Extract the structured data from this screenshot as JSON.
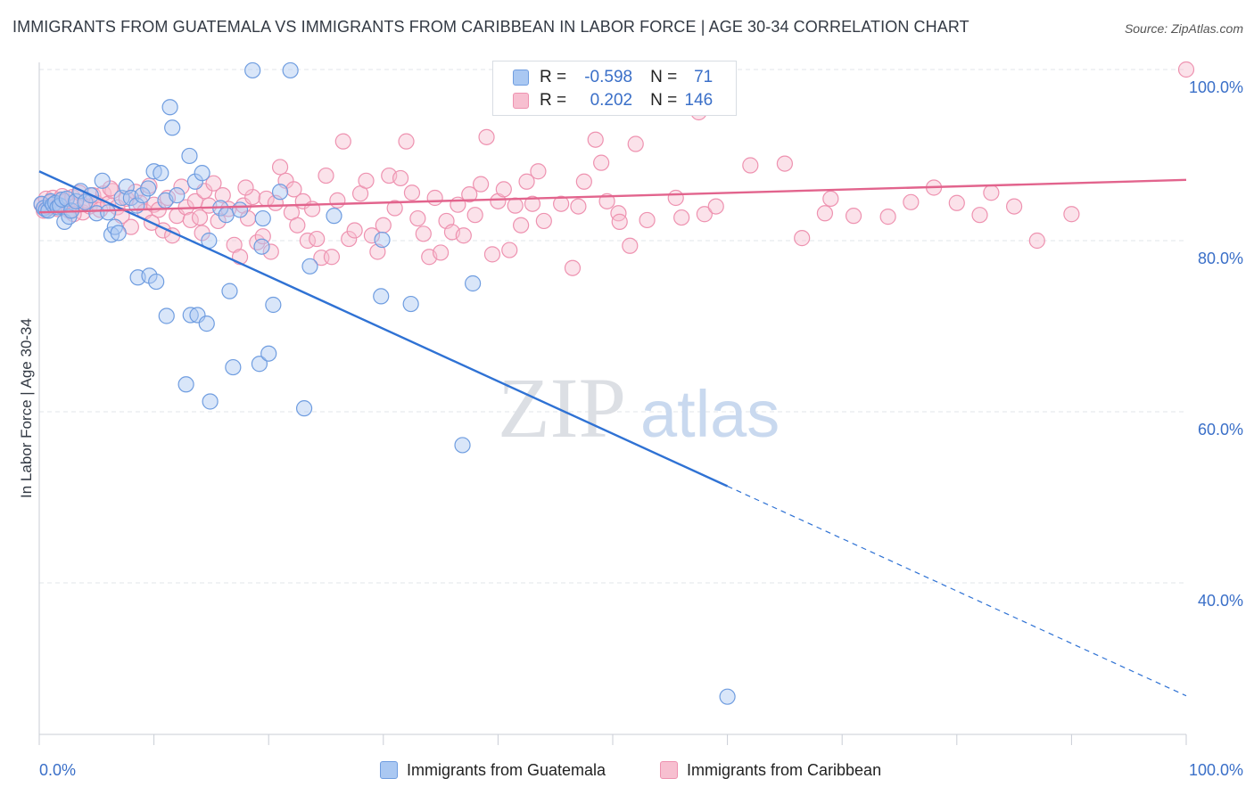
{
  "header": {
    "title": "IMMIGRANTS FROM GUATEMALA VS IMMIGRANTS FROM CARIBBEAN IN LABOR FORCE | AGE 30-34 CORRELATION CHART",
    "source": "Source: ZipAtlas.com"
  },
  "watermark": {
    "zip": "ZIP",
    "atlas": "atlas"
  },
  "legend": {
    "r_label": "R =",
    "n_label": "N =",
    "series": [
      {
        "name": "Immigrants from Guatemala",
        "r": "-0.598",
        "n": "71"
      },
      {
        "name": "Immigrants from Caribbean",
        "r": "0.202",
        "n": "146"
      }
    ]
  },
  "colors": {
    "guatemala_fill": "#aac8f2",
    "guatemala_stroke": "#6f9de0",
    "guatemala_line": "#2f72d4",
    "caribbean_fill": "#f7bfd0",
    "caribbean_stroke": "#ee92b0",
    "caribbean_line": "#e2648d",
    "axis_label": "#3a6fc8",
    "grid": "#e2e5ea"
  },
  "chart_data": {
    "type": "scatter",
    "title": "IMMIGRANTS FROM GUATEMALA VS IMMIGRANTS FROM CARIBBEAN IN LABOR FORCE | AGE 30-34 CORRELATION CHART",
    "xlabel": "",
    "ylabel": "In Labor Force | Age 30-34",
    "xlim": [
      0,
      100
    ],
    "ylim": [
      18,
      102
    ],
    "x_tick_labels": [
      "0.0%",
      "100.0%"
    ],
    "y_ticks": [
      40,
      60,
      80,
      100
    ],
    "y_tick_labels": [
      "40.0%",
      "60.0%",
      "80.0%",
      "100.0%"
    ],
    "grid": true,
    "legend_position": "top-center",
    "series": [
      {
        "name": "Immigrants from Guatemala",
        "r": -0.598,
        "n": 71,
        "trend": {
          "x0": 0,
          "y0": 88.1,
          "x1": 60,
          "y1": 51.3,
          "dashed_to_x": 100,
          "dashed_to_y": 26.8
        },
        "points": [
          [
            0.2,
            84.3
          ],
          [
            0.4,
            83.8
          ],
          [
            0.6,
            83.6
          ],
          [
            0.8,
            83.5
          ],
          [
            1.0,
            84.6
          ],
          [
            1.2,
            84.2
          ],
          [
            1.4,
            84.4
          ],
          [
            1.6,
            83.9
          ],
          [
            1.8,
            84.1
          ],
          [
            2.0,
            84.8
          ],
          [
            2.2,
            82.2
          ],
          [
            2.4,
            84.9
          ],
          [
            2.6,
            82.8
          ],
          [
            2.8,
            83.5
          ],
          [
            3.2,
            84.6
          ],
          [
            3.6,
            85.8
          ],
          [
            4.0,
            84.5
          ],
          [
            4.5,
            85.3
          ],
          [
            5.0,
            83.2
          ],
          [
            5.5,
            87.0
          ],
          [
            6.0,
            83.3
          ],
          [
            6.3,
            80.7
          ],
          [
            6.6,
            81.6
          ],
          [
            6.9,
            80.9
          ],
          [
            7.2,
            85.0
          ],
          [
            7.6,
            86.3
          ],
          [
            8.0,
            85.0
          ],
          [
            8.5,
            84.1
          ],
          [
            8.6,
            75.7
          ],
          [
            9.0,
            85.3
          ],
          [
            9.5,
            86.1
          ],
          [
            9.6,
            75.9
          ],
          [
            10.0,
            88.1
          ],
          [
            10.2,
            75.2
          ],
          [
            10.6,
            87.9
          ],
          [
            11.0,
            84.7
          ],
          [
            11.1,
            71.2
          ],
          [
            11.4,
            95.6
          ],
          [
            11.6,
            93.2
          ],
          [
            12.0,
            85.3
          ],
          [
            12.8,
            63.2
          ],
          [
            13.1,
            89.9
          ],
          [
            13.2,
            71.3
          ],
          [
            13.6,
            86.9
          ],
          [
            13.8,
            71.3
          ],
          [
            14.2,
            87.9
          ],
          [
            14.6,
            70.3
          ],
          [
            14.8,
            80.0
          ],
          [
            14.9,
            61.2
          ],
          [
            15.8,
            83.8
          ],
          [
            16.3,
            83.0
          ],
          [
            16.6,
            74.1
          ],
          [
            16.9,
            65.2
          ],
          [
            17.5,
            83.6
          ],
          [
            18.6,
            99.9
          ],
          [
            19.2,
            65.6
          ],
          [
            19.4,
            79.3
          ],
          [
            19.5,
            82.6
          ],
          [
            20.0,
            66.8
          ],
          [
            20.4,
            72.5
          ],
          [
            21.0,
            85.7
          ],
          [
            21.9,
            99.9
          ],
          [
            23.1,
            60.4
          ],
          [
            23.6,
            77.0
          ],
          [
            25.7,
            82.9
          ],
          [
            29.9,
            80.1
          ],
          [
            29.8,
            73.5
          ],
          [
            32.4,
            72.6
          ],
          [
            37.8,
            75.0
          ],
          [
            36.9,
            56.1
          ],
          [
            60.0,
            26.7
          ]
        ]
      },
      {
        "name": "Immigrants from Caribbean",
        "r": 0.202,
        "n": 146,
        "trend": {
          "x0": 0,
          "y0": 83.3,
          "x1": 100,
          "y1": 87.1
        },
        "points": [
          [
            0.2,
            84.2
          ],
          [
            0.4,
            83.5
          ],
          [
            0.6,
            84.9
          ],
          [
            0.8,
            83.9
          ],
          [
            1.0,
            84.5
          ],
          [
            1.2,
            85.0
          ],
          [
            1.4,
            84.0
          ],
          [
            1.6,
            83.7
          ],
          [
            1.8,
            84.8
          ],
          [
            2.0,
            85.2
          ],
          [
            2.3,
            84.6
          ],
          [
            2.6,
            83.5
          ],
          [
            2.9,
            85.1
          ],
          [
            3.2,
            84.1
          ],
          [
            3.5,
            85.6
          ],
          [
            3.8,
            83.3
          ],
          [
            4.1,
            84.7
          ],
          [
            4.4,
            84.0
          ],
          [
            4.7,
            85.3
          ],
          [
            5.0,
            84.4
          ],
          [
            5.3,
            83.6
          ],
          [
            5.6,
            85.5
          ],
          [
            6.0,
            84.3
          ],
          [
            6.4,
            85.8
          ],
          [
            6.8,
            83.9
          ],
          [
            7.2,
            82.9
          ],
          [
            7.6,
            84.9
          ],
          [
            8.0,
            81.6
          ],
          [
            8.4,
            85.7
          ],
          [
            8.8,
            84.4
          ],
          [
            9.2,
            83.4
          ],
          [
            9.6,
            86.4
          ],
          [
            10.0,
            84.2
          ],
          [
            10.4,
            83.6
          ],
          [
            10.8,
            81.2
          ],
          [
            11.2,
            85.0
          ],
          [
            11.6,
            80.6
          ],
          [
            12.0,
            82.9
          ],
          [
            12.4,
            86.3
          ],
          [
            12.8,
            83.9
          ],
          [
            13.2,
            82.4
          ],
          [
            13.6,
            84.6
          ],
          [
            14.0,
            82.7
          ],
          [
            14.4,
            85.8
          ],
          [
            14.8,
            84.1
          ],
          [
            15.2,
            86.7
          ],
          [
            15.6,
            82.3
          ],
          [
            16.0,
            85.3
          ],
          [
            16.5,
            83.7
          ],
          [
            17.0,
            79.5
          ],
          [
            17.5,
            78.1
          ],
          [
            17.8,
            84.1
          ],
          [
            18.2,
            82.6
          ],
          [
            18.6,
            85.1
          ],
          [
            19.0,
            79.8
          ],
          [
            19.5,
            80.5
          ],
          [
            19.8,
            84.9
          ],
          [
            20.2,
            78.7
          ],
          [
            20.6,
            84.4
          ],
          [
            21.0,
            88.6
          ],
          [
            21.5,
            87.0
          ],
          [
            22.0,
            83.3
          ],
          [
            22.5,
            81.8
          ],
          [
            23.0,
            84.6
          ],
          [
            23.4,
            80.0
          ],
          [
            23.8,
            83.7
          ],
          [
            24.2,
            80.2
          ],
          [
            24.6,
            78.0
          ],
          [
            25.0,
            87.6
          ],
          [
            25.5,
            78.1
          ],
          [
            26.0,
            84.7
          ],
          [
            26.5,
            91.6
          ],
          [
            27.0,
            80.2
          ],
          [
            27.5,
            81.2
          ],
          [
            28.0,
            85.5
          ],
          [
            28.5,
            87.0
          ],
          [
            29.0,
            80.6
          ],
          [
            29.5,
            78.7
          ],
          [
            30.0,
            81.8
          ],
          [
            30.5,
            87.6
          ],
          [
            31.0,
            83.8
          ],
          [
            31.5,
            87.3
          ],
          [
            32.0,
            91.6
          ],
          [
            32.5,
            85.6
          ],
          [
            33.0,
            82.6
          ],
          [
            33.5,
            80.8
          ],
          [
            34.0,
            78.1
          ],
          [
            34.5,
            85.0
          ],
          [
            35.0,
            78.6
          ],
          [
            35.5,
            82.3
          ],
          [
            36.0,
            81.0
          ],
          [
            36.5,
            84.2
          ],
          [
            37.0,
            80.6
          ],
          [
            37.5,
            85.4
          ],
          [
            38.0,
            83.0
          ],
          [
            38.5,
            86.6
          ],
          [
            39.0,
            92.1
          ],
          [
            39.5,
            78.4
          ],
          [
            40.0,
            84.6
          ],
          [
            40.5,
            86.0
          ],
          [
            41.0,
            78.9
          ],
          [
            41.5,
            84.1
          ],
          [
            42.0,
            81.8
          ],
          [
            42.5,
            86.9
          ],
          [
            43.0,
            84.3
          ],
          [
            43.5,
            88.1
          ],
          [
            44.0,
            82.3
          ],
          [
            45.5,
            84.3
          ],
          [
            46.5,
            76.8
          ],
          [
            47.0,
            84.0
          ],
          [
            47.5,
            86.9
          ],
          [
            48.5,
            91.8
          ],
          [
            49.0,
            89.1
          ],
          [
            49.5,
            84.6
          ],
          [
            50.5,
            83.2
          ],
          [
            50.6,
            82.2
          ],
          [
            51.5,
            79.4
          ],
          [
            52.0,
            91.3
          ],
          [
            53.0,
            82.4
          ],
          [
            55.5,
            85.0
          ],
          [
            56.0,
            82.7
          ],
          [
            57.5,
            95.0
          ],
          [
            58.0,
            83.1
          ],
          [
            59.0,
            84.0
          ],
          [
            62.0,
            88.8
          ],
          [
            65.0,
            89.0
          ],
          [
            66.5,
            80.3
          ],
          [
            68.5,
            83.2
          ],
          [
            69.0,
            84.9
          ],
          [
            71.0,
            82.9
          ],
          [
            74.0,
            82.8
          ],
          [
            76.0,
            84.5
          ],
          [
            78.0,
            86.2
          ],
          [
            80.0,
            84.4
          ],
          [
            82.0,
            83.0
          ],
          [
            83.0,
            85.6
          ],
          [
            85.0,
            84.0
          ],
          [
            87.0,
            80.0
          ],
          [
            90.0,
            83.1
          ],
          [
            100.0,
            100.0
          ],
          [
            3.0,
            83.1
          ],
          [
            6.2,
            86.1
          ],
          [
            9.8,
            82.1
          ],
          [
            14.2,
            80.9
          ],
          [
            18.0,
            86.2
          ],
          [
            22.2,
            86.0
          ]
        ]
      }
    ]
  }
}
